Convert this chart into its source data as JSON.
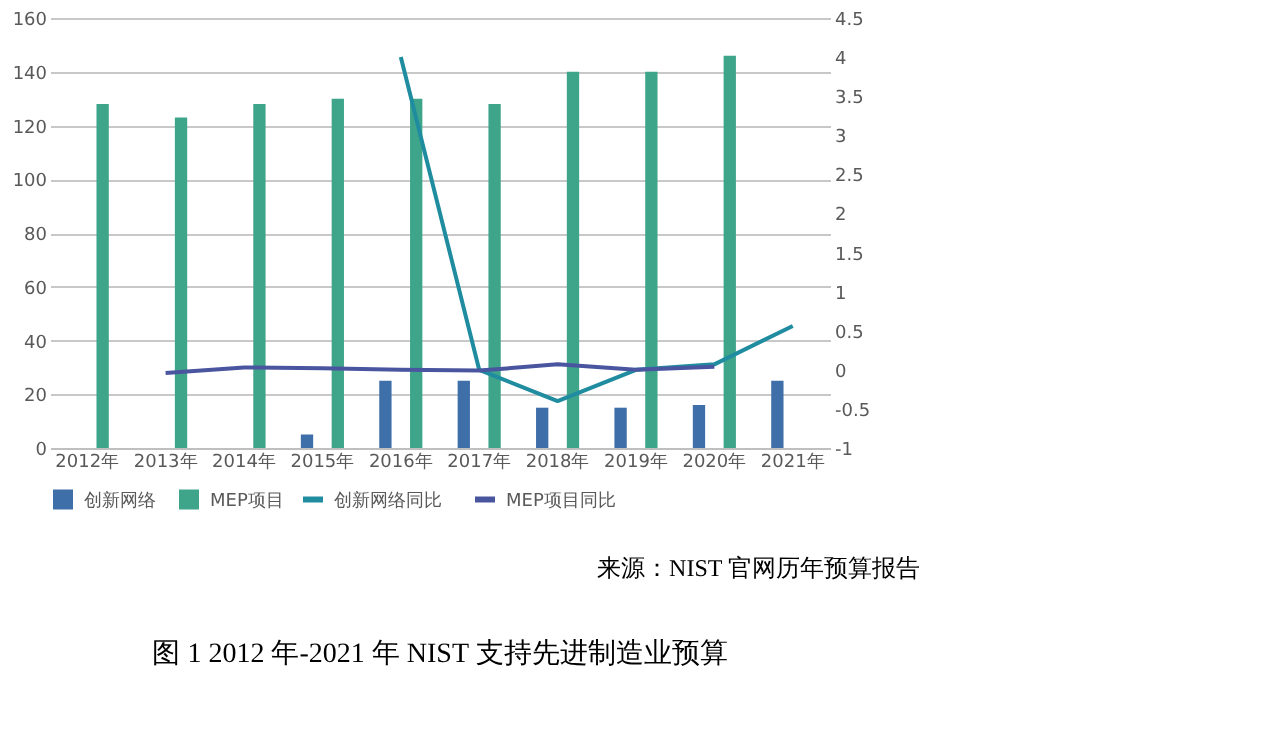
{
  "chart_data": {
    "type": "bar",
    "title": "图 1 2012 年-2021 年 NIST 支持先进制造业预算",
    "categories": [
      "2012年",
      "2013年",
      "2014年",
      "2015年",
      "2016年",
      "2017年",
      "2018年",
      "2019年",
      "2020年",
      "2021年"
    ],
    "series": [
      {
        "name": "创新网络",
        "color": "#3f6fa8",
        "values": [
          null,
          null,
          null,
          5,
          25,
          25,
          15,
          15,
          16,
          25
        ]
      },
      {
        "name": "MEP项目",
        "color": "#3fa58a",
        "values": [
          128,
          123,
          128,
          130,
          130,
          128,
          140,
          140,
          146,
          null
        ]
      },
      {
        "name": "创新网络同比",
        "type": "line",
        "axis": "y2",
        "color": "#1f8ca0",
        "values": [
          null,
          null,
          null,
          null,
          4.0,
          0,
          -0.4,
          0,
          0.07,
          0.56
        ]
      },
      {
        "name": "MEP项目同比",
        "type": "line",
        "axis": "y2",
        "color": "#4a55a0",
        "values": [
          null,
          -0.04,
          0.03,
          0.02,
          0,
          -0.01,
          0.07,
          0,
          0.04,
          null
        ]
      }
    ],
    "ylim": [
      0,
      160
    ],
    "yticks": [
      0,
      20,
      40,
      60,
      80,
      100,
      120,
      140,
      160
    ],
    "y2lim": [
      -1,
      4.5
    ],
    "y2ticks": [
      -1,
      -0.5,
      0,
      0.5,
      1,
      1.5,
      2,
      2.5,
      3,
      3.5,
      4,
      4.5
    ],
    "grid": "y",
    "legend": "bottom",
    "marker": "none",
    "annotations": [
      "来源：NIST 官网历年预算报告"
    ]
  }
}
